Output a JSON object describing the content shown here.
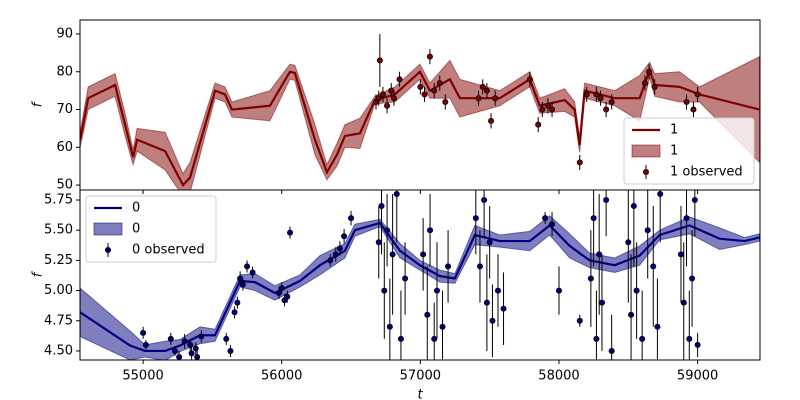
{
  "chart_data": [
    {
      "type": "line",
      "ylabel": "f",
      "xlim": [
        54545,
        59450
      ],
      "ylim": [
        48.7,
        93.7
      ],
      "yticks": [
        50,
        60,
        70,
        80,
        90
      ],
      "legend": "lower right",
      "series": [
        {
          "name": "1",
          "type": "line",
          "color": "#800000",
          "x": [
            54546,
            54604,
            54798,
            54870,
            54928,
            54957,
            55159,
            55288,
            55339,
            55519,
            55591,
            55641,
            55915,
            56059,
            56095,
            56240,
            56326,
            56398,
            56456,
            56564,
            56672,
            56816,
            56997,
            57069,
            57213,
            57285,
            57573,
            57789,
            57861,
            58041,
            58113,
            58149,
            58185,
            58294,
            58402,
            58582,
            58654,
            58690,
            58870,
            59014,
            59447
          ],
          "values": [
            62,
            73,
            76.5,
            66,
            57.4,
            62,
            59,
            50,
            52,
            75,
            74,
            70,
            71,
            80,
            79.7,
            62,
            53.4,
            58,
            63,
            63.7,
            72.5,
            74,
            80,
            75,
            78,
            73,
            73,
            78,
            71,
            72.5,
            70,
            60.6,
            75,
            74,
            73,
            73,
            80.5,
            76.5,
            76,
            74,
            70
          ]
        },
        {
          "name": "1",
          "type": "band",
          "color": "#800000",
          "x": [
            54546,
            54604,
            54798,
            54870,
            54928,
            54957,
            55159,
            55288,
            55339,
            55519,
            55591,
            55641,
            55915,
            56059,
            56095,
            56240,
            56326,
            56398,
            56456,
            56564,
            56672,
            56816,
            56997,
            57069,
            57213,
            57285,
            57573,
            57789,
            57861,
            58041,
            58113,
            58149,
            58185,
            58294,
            58402,
            58582,
            58654,
            58690,
            58870,
            59014,
            59447
          ],
          "lower": [
            60,
            70,
            73.5,
            63,
            55.4,
            59,
            54,
            47,
            48,
            73,
            72,
            68,
            67,
            78,
            77.7,
            58,
            51.4,
            55,
            60,
            59.7,
            71.5,
            72,
            78,
            73,
            73,
            68,
            71,
            76,
            69,
            69.5,
            68,
            58.6,
            73,
            72,
            71,
            67,
            78.5,
            73.5,
            72,
            72,
            56
          ],
          "upper": [
            64,
            76,
            79.5,
            69,
            59.4,
            65,
            64,
            53,
            56,
            77,
            76,
            72,
            75,
            82,
            81.7,
            66,
            55.4,
            61,
            66,
            67.7,
            73.5,
            76,
            82,
            77,
            83,
            78,
            75,
            80,
            73,
            75.5,
            72,
            62.6,
            77,
            76,
            75,
            79,
            82.5,
            79.5,
            80,
            76,
            84
          ]
        },
        {
          "name": "1 observed",
          "type": "errorbar",
          "color": "#800000",
          "x": [
            56680,
            56700,
            56708,
            56730,
            56760,
            56790,
            56810,
            56850,
            57000,
            57030,
            57069,
            57100,
            57140,
            57180,
            57420,
            57450,
            57480,
            57510,
            57540,
            57790,
            57850,
            57880,
            57920,
            57950,
            58150,
            58200,
            58270,
            58300,
            58340,
            58380,
            58620,
            58650,
            58690,
            58920,
            58970,
            59000
          ],
          "values": [
            72,
            73,
            83,
            74,
            71,
            75,
            73,
            78,
            76,
            74,
            84,
            75,
            77,
            72,
            73,
            76,
            75,
            67,
            73,
            78,
            66,
            70,
            71,
            70,
            56,
            74,
            74,
            73,
            70,
            72,
            77,
            80,
            76,
            72,
            70,
            74
          ],
          "errors": [
            2,
            2,
            7,
            2,
            2,
            2,
            2,
            2,
            2,
            2,
            2,
            2,
            2,
            2,
            2,
            2,
            2,
            2,
            2,
            2,
            2,
            2,
            2,
            2,
            2,
            2,
            2,
            2,
            2,
            2,
            2,
            2,
            2,
            2,
            2,
            2
          ]
        }
      ]
    },
    {
      "type": "line",
      "ylabel": "f",
      "xlabel": "t",
      "xlim": [
        54545,
        59450
      ],
      "ylim": [
        4.425,
        5.833
      ],
      "xticks": [
        55000,
        56000,
        57000,
        58000,
        59000
      ],
      "yticks": [
        {
          "value": 4.5,
          "label": "4.50"
        },
        4.75,
        {
          "value": 5.0,
          "label": "5.00"
        },
        5.25,
        {
          "value": 5.5,
          "label": "5.50"
        },
        5.75
      ],
      "legend": "upper left",
      "series": [
        {
          "name": "0",
          "type": "line",
          "color": "#000080",
          "x": [
            54546,
            54906,
            55014,
            55159,
            55267,
            55411,
            55519,
            55699,
            55807,
            55951,
            56132,
            56276,
            56456,
            56528,
            56708,
            56853,
            56997,
            57141,
            57249,
            57393,
            57573,
            57789,
            57933,
            58077,
            58221,
            58402,
            58582,
            58726,
            58942,
            59158,
            59339,
            59447
          ],
          "values": [
            4.82,
            4.545,
            4.5,
            4.5,
            4.545,
            4.63,
            4.63,
            5.08,
            5.07,
            4.98,
            5.08,
            5.21,
            5.33,
            5.5,
            5.56,
            5.33,
            5.21,
            5.12,
            5.1,
            5.46,
            5.41,
            5.41,
            5.54,
            5.37,
            5.25,
            5.21,
            5.29,
            5.46,
            5.54,
            5.43,
            5.41,
            5.44
          ]
        },
        {
          "name": "0",
          "type": "band",
          "color": "#000080",
          "x": [
            54546,
            54906,
            55014,
            55159,
            55267,
            55411,
            55519,
            55699,
            55807,
            55951,
            56132,
            56276,
            56456,
            56528,
            56708,
            56853,
            56997,
            57141,
            57249,
            57393,
            57573,
            57789,
            57933,
            58077,
            58221,
            58402,
            58582,
            58726,
            58942,
            59158,
            59339,
            59447
          ],
          "lower": [
            4.62,
            4.425,
            4.45,
            4.42,
            4.495,
            4.56,
            4.58,
            5.03,
            5.0,
            4.92,
            5.03,
            5.13,
            5.27,
            5.45,
            5.53,
            5.27,
            5.17,
            5.07,
            5.06,
            5.38,
            5.36,
            5.33,
            5.46,
            5.27,
            5.19,
            5.15,
            5.21,
            5.42,
            5.47,
            5.34,
            5.38,
            5.41
          ],
          "upper": [
            5.02,
            4.665,
            4.55,
            4.58,
            4.595,
            4.7,
            4.68,
            5.13,
            5.14,
            5.04,
            5.13,
            5.29,
            5.39,
            5.55,
            5.59,
            5.39,
            5.25,
            5.17,
            5.14,
            5.54,
            5.46,
            5.49,
            5.62,
            5.47,
            5.31,
            5.27,
            5.37,
            5.5,
            5.61,
            5.52,
            5.44,
            5.47
          ]
        },
        {
          "name": "0 observed",
          "type": "errorbar",
          "color": "#000080",
          "x": [
            55000,
            55020,
            55200,
            55230,
            55260,
            55300,
            55340,
            55350,
            55380,
            55390,
            55420,
            55600,
            55630,
            55660,
            55680,
            55700,
            55720,
            55750,
            55790,
            55980,
            56000,
            56020,
            56040,
            56060,
            56350,
            56390,
            56420,
            56450,
            56500,
            56700,
            56720,
            56740,
            56760,
            56780,
            56800,
            56830,
            56860,
            56890,
            57020,
            57050,
            57070,
            57100,
            57120,
            57160,
            57200,
            57400,
            57430,
            57460,
            57480,
            57500,
            57520,
            57560,
            57600,
            57900,
            57950,
            58000,
            58150,
            58230,
            58250,
            58270,
            58290,
            58310,
            58340,
            58380,
            58500,
            58520,
            58540,
            58560,
            58600,
            58640,
            58680,
            58710,
            58730,
            58880,
            58900,
            58920,
            58940,
            58960,
            58980,
            59000
          ],
          "values": [
            4.65,
            4.55,
            4.6,
            4.5,
            4.45,
            4.58,
            4.55,
            4.48,
            4.52,
            4.45,
            4.62,
            4.6,
            4.5,
            4.82,
            4.9,
            5.1,
            5.05,
            5.2,
            5.15,
            4.98,
            5.02,
            4.92,
            4.95,
            5.48,
            5.25,
            5.3,
            5.35,
            5.45,
            5.6,
            5.4,
            5.7,
            5.0,
            5.5,
            4.7,
            5.3,
            5.8,
            4.6,
            5.1,
            5.3,
            4.8,
            5.5,
            4.6,
            5.0,
            4.7,
            5.2,
            5.6,
            5.2,
            5.75,
            4.9,
            5.4,
            4.75,
            5.0,
            4.85,
            5.6,
            5.55,
            5.0,
            4.75,
            5.1,
            5.6,
            4.6,
            5.3,
            4.9,
            5.75,
            4.5,
            5.4,
            4.8,
            5.7,
            5.0,
            4.6,
            5.5,
            5.2,
            4.7,
            5.8,
            5.3,
            4.9,
            5.6,
            4.6,
            5.1,
            5.75,
            4.55
          ],
          "errors": [
            0.05,
            0.04,
            0.05,
            0.04,
            0.05,
            0.06,
            0.05,
            0.05,
            0.05,
            0.05,
            0.05,
            0.05,
            0.05,
            0.05,
            0.05,
            0.06,
            0.05,
            0.05,
            0.05,
            0.05,
            0.05,
            0.05,
            0.05,
            0.05,
            0.05,
            0.06,
            0.06,
            0.06,
            0.06,
            0.3,
            0.4,
            0.4,
            0.3,
            0.4,
            0.5,
            0.4,
            0.4,
            0.3,
            0.3,
            0.4,
            0.3,
            0.3,
            0.4,
            0.3,
            0.3,
            0.3,
            0.3,
            0.3,
            0.4,
            0.3,
            0.3,
            0.3,
            0.3,
            0.05,
            0.1,
            0.2,
            0.05,
            0.4,
            0.4,
            0.4,
            0.5,
            0.4,
            0.3,
            0.3,
            0.5,
            0.5,
            0.5,
            0.4,
            0.4,
            0.4,
            0.5,
            0.4,
            0.4,
            0.4,
            0.5,
            0.4,
            0.4,
            0.4,
            0.3,
            0.1
          ]
        }
      ]
    }
  ]
}
